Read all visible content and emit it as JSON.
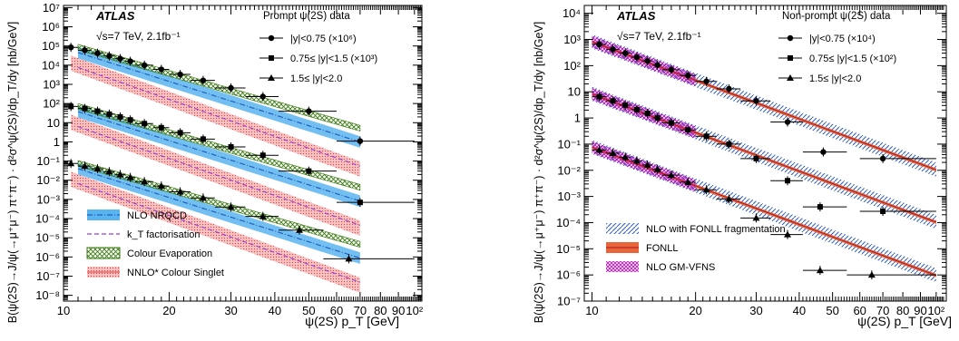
{
  "chart_data": [
    {
      "type": "scatter",
      "log_x": true,
      "log_y": true,
      "xlim": [
        10,
        105
      ],
      "ylim": [
        5e-09,
        13000000.0
      ],
      "xlabel": "ψ(2S) p_T [GeV]",
      "ylabel": "B(ψ(2S)→J/ψ(→μ⁺μ⁻) π⁺π⁻) · d²σ^ψ(2S)/dp_T/dy [nb/GeV]",
      "atlas_label": "ATLAS",
      "energy_label": "√s=7 TeV, 2.1fb⁻¹",
      "legend_title": "Prompt ψ(2S) data",
      "x_tick_labels": [
        "10",
        "20",
        "30",
        "40",
        "50",
        "60",
        "70",
        "80",
        "90",
        "10²"
      ],
      "y_tick_labels": [
        "10⁻⁸",
        "10⁻⁷",
        "10⁻⁶",
        "10⁻⁵",
        "10⁻⁴",
        "10⁻³",
        "10⁻²",
        "10⁻¹",
        "1",
        "10",
        "10²",
        "10³",
        "10⁴",
        "10⁵",
        "10⁶",
        "10⁷"
      ],
      "data_series": [
        {
          "name": "|y|<0.75 (×10⁶)",
          "marker": "circle",
          "x": [
            10.5,
            11.5,
            12.5,
            13.5,
            14.5,
            15.5,
            17,
            19,
            21.5,
            25,
            30,
            37,
            50,
            70
          ],
          "xlow": [
            10,
            11,
            12,
            13,
            14,
            15,
            16,
            18,
            20,
            23,
            27,
            33,
            41,
            60
          ],
          "xhigh": [
            11,
            12,
            13,
            14,
            15,
            16,
            18,
            20,
            23,
            27,
            33,
            41,
            60,
            100
          ],
          "y": [
            85000,
            60000,
            42000,
            30000,
            22000,
            16000,
            10000,
            6000,
            3300,
            1600,
            650,
            230,
            40,
            1.1
          ]
        },
        {
          "name": "0.75≤ |y|<1.5 (×10³)",
          "marker": "square",
          "x": [
            10.5,
            11.5,
            12.5,
            13.5,
            14.5,
            15.5,
            17,
            19,
            21.5,
            25,
            30,
            37,
            50,
            70
          ],
          "xlow": [
            10,
            11,
            12,
            13,
            14,
            15,
            16,
            18,
            20,
            23,
            27,
            33,
            41,
            60
          ],
          "xhigh": [
            11,
            12,
            13,
            14,
            15,
            16,
            18,
            20,
            23,
            27,
            33,
            41,
            60,
            100
          ],
          "y": [
            70,
            55,
            40,
            28,
            20,
            14,
            9,
            5.5,
            3,
            1.4,
            0.55,
            0.2,
            0.03,
            0.0007
          ]
        },
        {
          "name": "1.5≤ |y|<2.0",
          "marker": "triangle",
          "x": [
            10.5,
            11.5,
            12.5,
            13.5,
            14.5,
            15.5,
            17,
            19,
            21.5,
            25,
            30,
            37,
            47,
            65
          ],
          "xlow": [
            10,
            11,
            12,
            13,
            14,
            15,
            16,
            18,
            20,
            23,
            27,
            33,
            41,
            55
          ],
          "xhigh": [
            11,
            12,
            13,
            14,
            15,
            16,
            18,
            20,
            23,
            27,
            33,
            41,
            55,
            100
          ],
          "y": [
            0.075,
            0.055,
            0.04,
            0.028,
            0.02,
            0.014,
            0.0085,
            0.005,
            0.0025,
            0.0012,
            0.0004,
            0.00013,
            2.5e-05,
            8e-07
          ]
        }
      ],
      "theory_legend": [
        {
          "name": "NLO NRQCD",
          "style": "blue band"
        },
        {
          "name": "k_T factorisation",
          "style": "purple dashed"
        },
        {
          "name": "Colour Evaporation",
          "style": "green hatched"
        },
        {
          "name": "NNLO* Colour Singlet",
          "style": "red band"
        }
      ]
    },
    {
      "type": "scatter",
      "log_x": true,
      "log_y": true,
      "xlim": [
        9.5,
        107
      ],
      "ylim": [
        1e-07,
        20000.0
      ],
      "xlabel": "ψ(2S) p_T [GeV]",
      "ylabel": "B(ψ(2S)→J/ψ(→μ⁺μ⁻) π⁺π⁻) · d²σ^ψ(2S)/dp_T/dy [nb/GeV]",
      "atlas_label": "ATLAS",
      "energy_label": "√s=7 TeV, 2.1fb⁻¹",
      "legend_title": "Non-prompt ψ(2S) data",
      "x_tick_labels": [
        "10",
        "20",
        "30",
        "40",
        "50",
        "60",
        "70",
        "80",
        "90",
        "10²"
      ],
      "y_tick_labels": [
        "10⁻⁷",
        "10⁻⁶",
        "10⁻⁵",
        "10⁻⁴",
        "10⁻³",
        "10⁻²",
        "10⁻¹",
        "1",
        "10",
        "10²",
        "10³",
        "10⁴"
      ],
      "data_series": [
        {
          "name": "|y|<0.75 (×10⁴)",
          "marker": "circle",
          "x": [
            10.5,
            11.5,
            12.5,
            13.5,
            14.5,
            15.5,
            17,
            19,
            21.5,
            25,
            30,
            37,
            47,
            70
          ],
          "xlow": [
            10,
            11,
            12,
            13,
            14,
            15,
            16,
            18,
            20,
            23,
            27,
            33,
            41,
            60
          ],
          "xhigh": [
            11,
            12,
            13,
            14,
            15,
            16,
            18,
            20,
            23,
            27,
            33,
            41,
            55,
            100
          ],
          "y": [
            650,
            420,
            300,
            210,
            150,
            105,
            70,
            42,
            25,
            13,
            4.5,
            0.7,
            0.05,
            0.028
          ]
        },
        {
          "name": "0.75≤ |y|<1.5 (×10²)",
          "marker": "square",
          "x": [
            10.5,
            11.5,
            12.5,
            13.5,
            14.5,
            15.5,
            17,
            19,
            21.5,
            25,
            30,
            37,
            46,
            70
          ],
          "xlow": [
            10,
            11,
            12,
            13,
            14,
            15,
            16,
            18,
            20,
            23,
            27,
            33,
            41,
            60
          ],
          "xhigh": [
            11,
            12,
            13,
            14,
            15,
            16,
            18,
            20,
            23,
            27,
            33,
            41,
            55,
            100
          ],
          "y": [
            6.5,
            4.5,
            3.1,
            2.1,
            1.5,
            1.0,
            0.65,
            0.35,
            0.2,
            0.1,
            0.028,
            0.004,
            0.0004,
            0.00027
          ]
        },
        {
          "name": "1.5≤ |y|<2.0",
          "marker": "triangle",
          "x": [
            10.5,
            11.5,
            12.5,
            13.5,
            14.5,
            15.5,
            17,
            19,
            21.5,
            25,
            30,
            37,
            46,
            65
          ],
          "xlow": [
            10,
            11,
            12,
            13,
            14,
            15,
            16,
            18,
            20,
            23,
            27,
            33,
            41,
            55
          ],
          "xhigh": [
            11,
            12,
            13,
            14,
            15,
            16,
            18,
            20,
            23,
            27,
            33,
            41,
            55,
            100
          ],
          "y": [
            0.06,
            0.045,
            0.032,
            0.023,
            0.016,
            0.011,
            0.0065,
            0.0035,
            0.0018,
            0.0008,
            0.00015,
            3.5e-05,
            1.5e-06,
            1e-06
          ]
        }
      ],
      "theory_legend": [
        {
          "name": "NLO  with FONLL fragmentation",
          "style": "blue hatched"
        },
        {
          "name": "FONLL",
          "style": "orange-red band"
        },
        {
          "name": "NLO GM-VFNS",
          "style": "magenta hatched"
        }
      ]
    }
  ],
  "colors": {
    "nrqcd_fill": "#5ab4f0",
    "nrqcd_line": "#2060c0",
    "kt_line": "#9a3ad0",
    "ceve": "#3a7a10",
    "nnlo_fill": "#f4a6a6",
    "nnlo_line": "#e04040",
    "fonll_nlo": "#2a5cc0",
    "fonll": "#e8643a",
    "gmvfns": "#c020c0"
  }
}
